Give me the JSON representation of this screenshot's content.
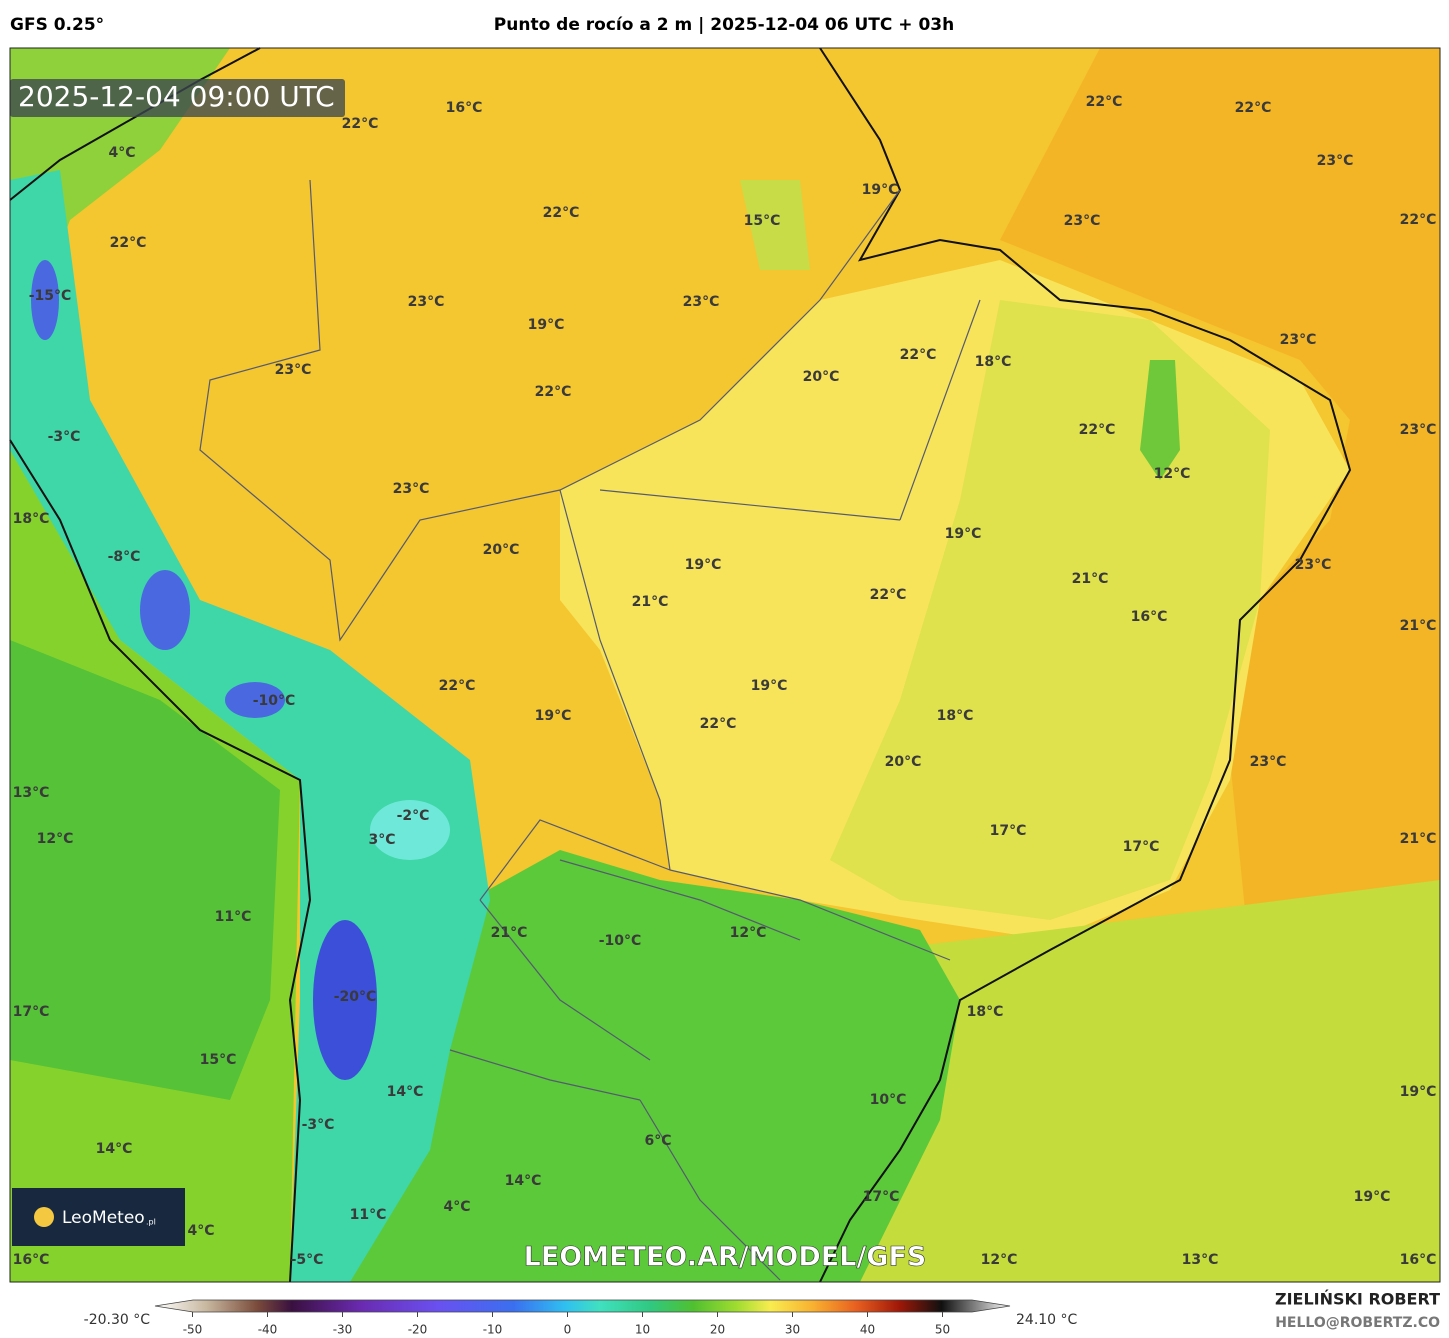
{
  "header": {
    "model": "GFS 0.25°",
    "title": "Punto de rocío a 2 m | 2025-12-04 06 UTC + 03h"
  },
  "map": {
    "timestamp": "2025-12-04 09:00 UTC",
    "labels": [
      "16°C",
      "22°C",
      "4°C",
      "22°C",
      "22°C",
      "23°C",
      "19°C",
      "15°C",
      "23°C",
      "22°C",
      "22°C",
      "22°C",
      "-15°C",
      "23°C",
      "23°C",
      "19°C",
      "23°C",
      "22°C",
      "18°C",
      "23°C",
      "20°C",
      "22°C",
      "22°C",
      "23°C",
      "-3°C",
      "12°C",
      "23°C",
      "18°C",
      "19°C",
      "-8°C",
      "20°C",
      "19°C",
      "23°C",
      "21°C",
      "21°C",
      "22°C",
      "16°C",
      "21°C",
      "22°C",
      "19°C",
      "-10°C",
      "19°C",
      "18°C",
      "22°C",
      "20°C",
      "23°C",
      "13°C",
      "-2°C",
      "3°C",
      "12°C",
      "17°C",
      "21°C",
      "17°C",
      "11°C",
      "21°C",
      "-10°C",
      "12°C",
      "-20°C",
      "17°C",
      "18°C",
      "15°C",
      "14°C",
      "19°C",
      "10°C",
      "-3°C",
      "6°C",
      "14°C",
      "14°C",
      "17°C",
      "19°C",
      "4°C",
      "11°C",
      "4°C",
      "16°C",
      "-5°C",
      "12°C",
      "13°C",
      "16°C"
    ],
    "watermark": "LEOMETEO.AR/MODEL/GFS",
    "logo": "LeoMeteo",
    "logo_suffix": ".pl"
  },
  "colorbar": {
    "min_label": "-20.30 °C",
    "max_label": "24.10 °C",
    "lim": [
      -55,
      59
    ],
    "ticks": [
      -50,
      -40,
      -30,
      -20,
      -10,
      0,
      10,
      20,
      30,
      40,
      50
    ]
  },
  "credits": {
    "author": "ZIELIŃSKI ROBERT",
    "contact": "HELLO@ROBERTZ.CO"
  }
}
